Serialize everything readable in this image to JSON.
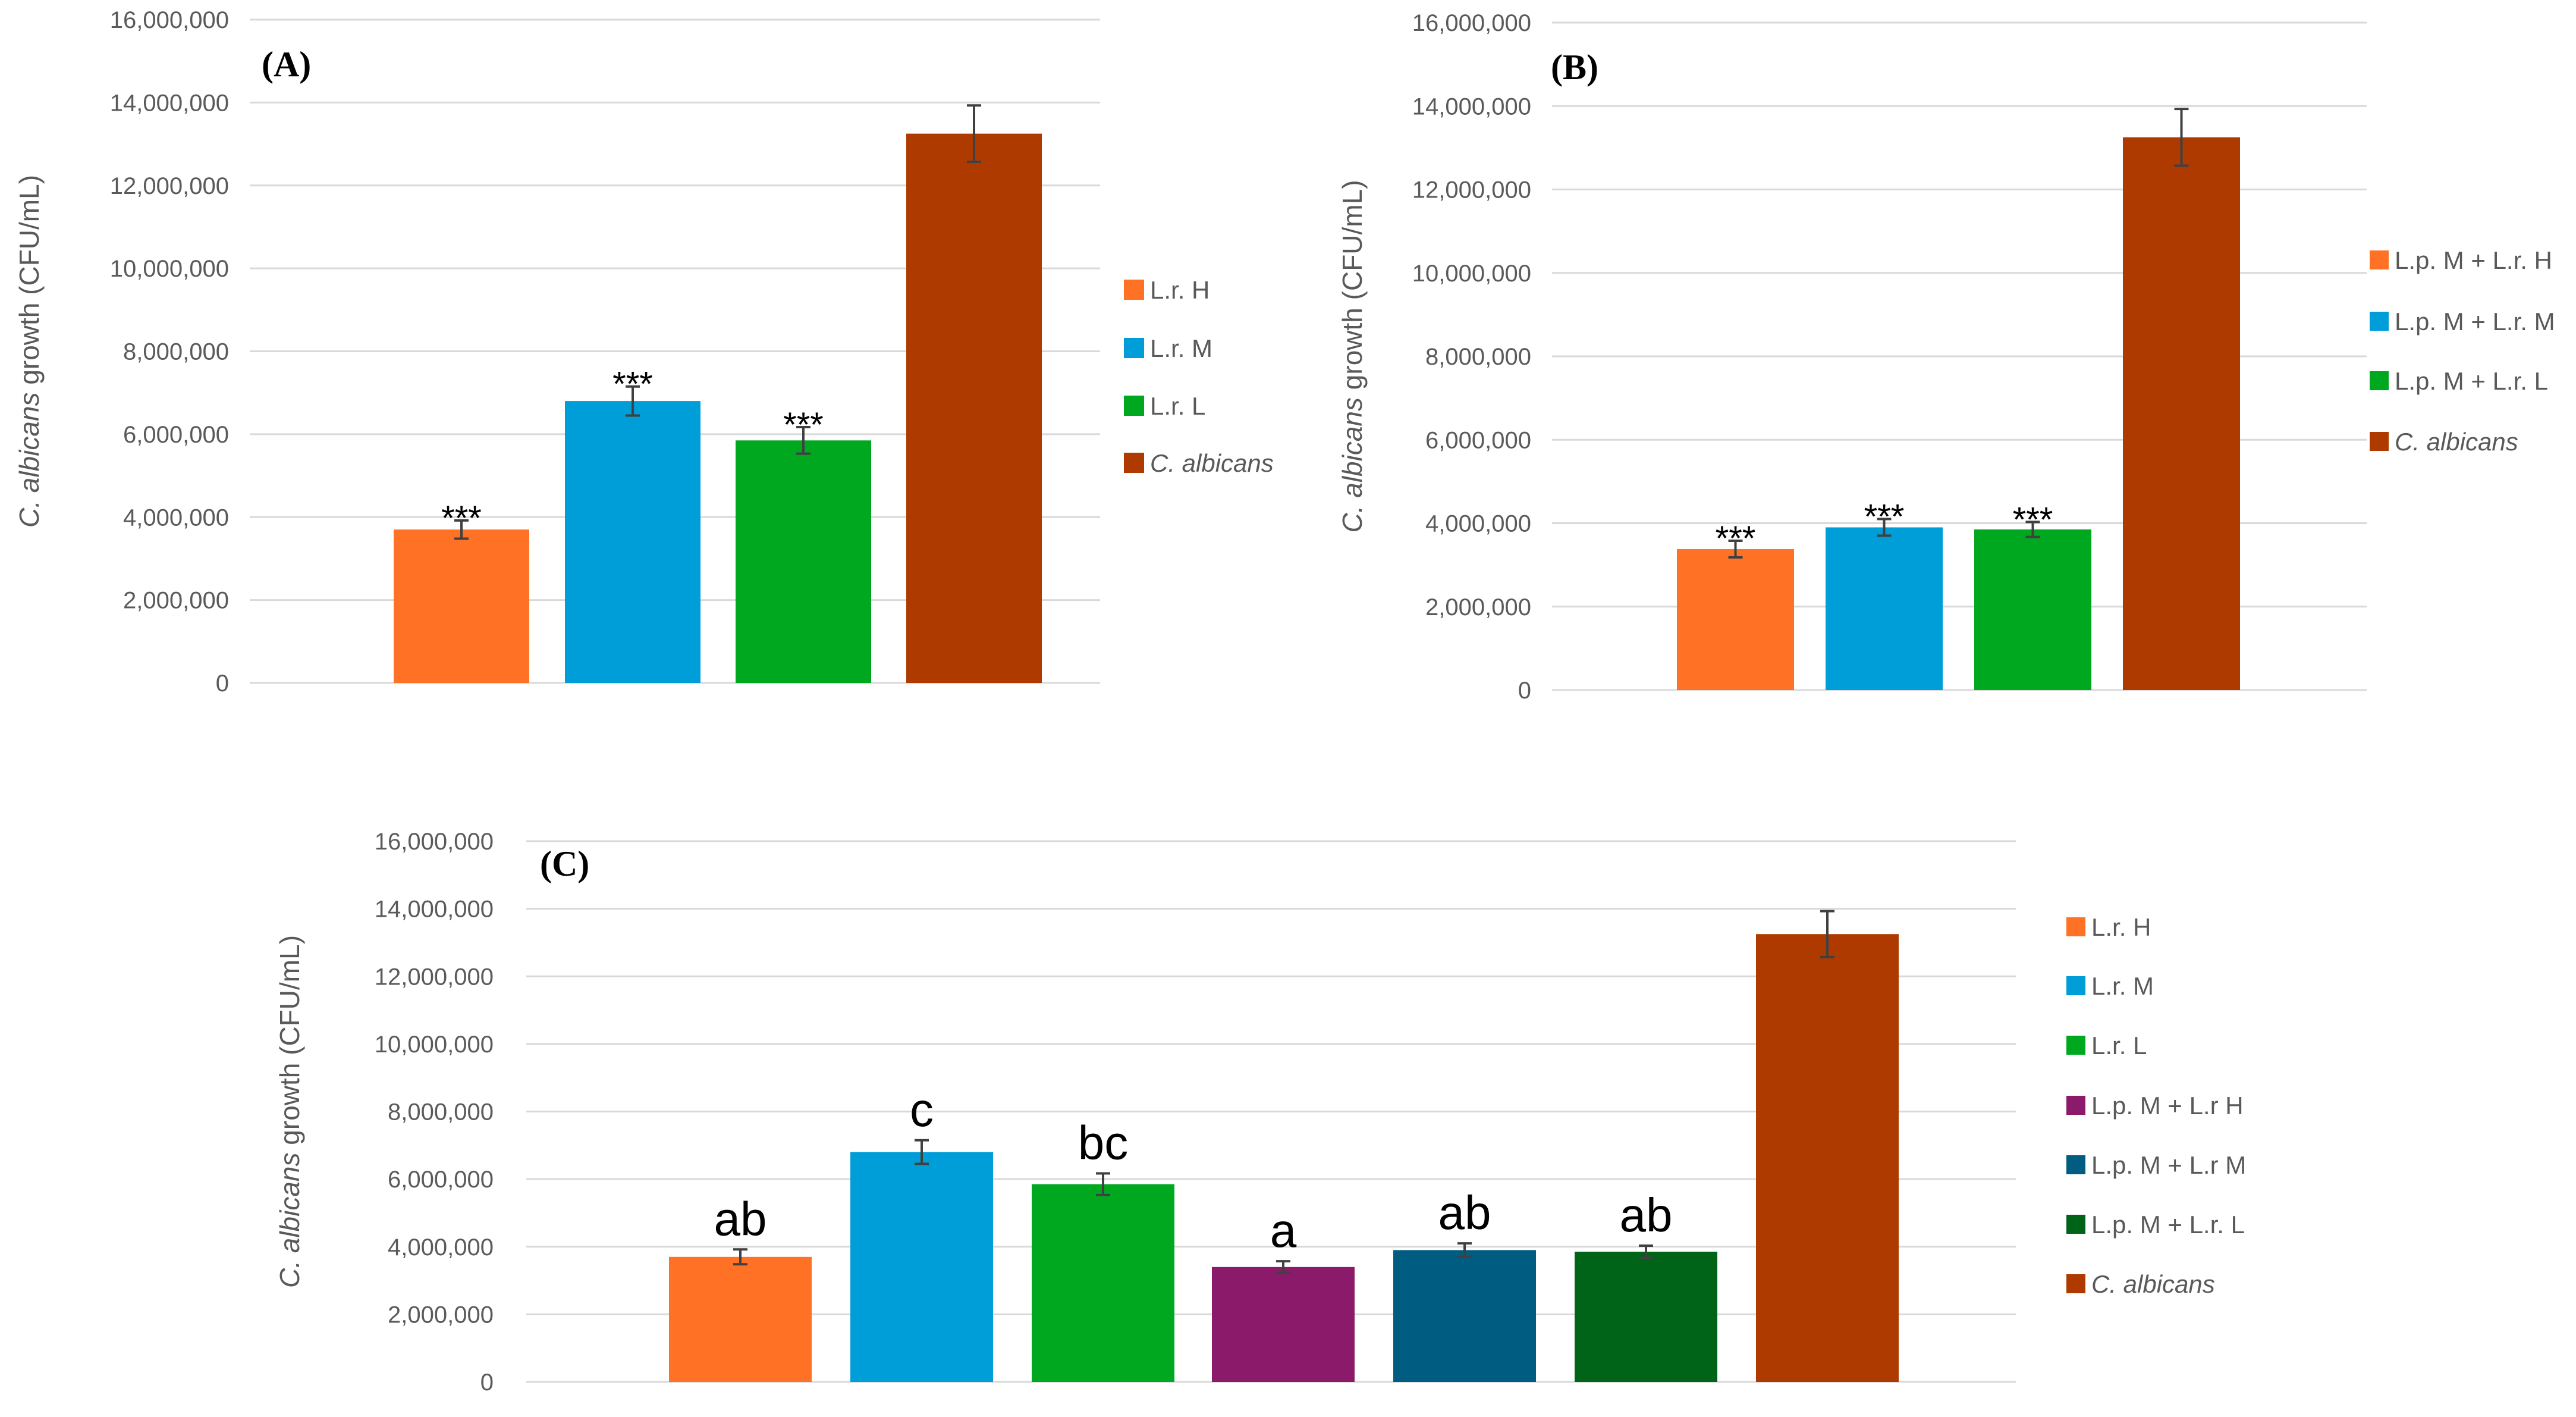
{
  "colors": {
    "orange": "#ff7124",
    "blue": "#009ed8",
    "green": "#00a81f",
    "purple": "#8b1a6b",
    "teal": "#005c80",
    "darkgreen": "#006418",
    "brown": "#ae3a00"
  },
  "chart_data": [
    {
      "type": "bar",
      "panel_label": "(A)",
      "ylabel_italic": "C. albicans",
      "ylabel_rest": " growth (CFU/mL)",
      "ylim": [
        0,
        16000000
      ],
      "yticks": [
        "0",
        "2,000,000",
        "4,000,000",
        "6,000,000",
        "8,000,000",
        "10,000,000",
        "12,000,000",
        "14,000,000",
        "16,000,000"
      ],
      "series": [
        {
          "name": "L.r. H",
          "italic": false,
          "value": 3700000,
          "error": 220000,
          "color": "orange",
          "annotation": "***"
        },
        {
          "name": "L.r. M",
          "italic": false,
          "value": 6800000,
          "error": 350000,
          "color": "blue",
          "annotation": "***"
        },
        {
          "name": "L.r. L",
          "italic": false,
          "value": 5850000,
          "error": 320000,
          "color": "green",
          "annotation": "***"
        },
        {
          "name": "C. albicans",
          "italic": true,
          "value": 13250000,
          "error": 680000,
          "color": "brown",
          "annotation": ""
        }
      ]
    },
    {
      "type": "bar",
      "panel_label": "(B)",
      "ylabel_italic": "C. albicans",
      "ylabel_rest": " growth (CFU/mL)",
      "ylim": [
        0,
        16000000
      ],
      "yticks": [
        "0",
        "2,000,000",
        "4,000,000",
        "6,000,000",
        "8,000,000",
        "10,000,000",
        "12,000,000",
        "14,000,000",
        "16,000,000"
      ],
      "series": [
        {
          "name": "L.p. M + L.r. H",
          "italic": false,
          "value": 3380000,
          "error": 200000,
          "color": "orange",
          "annotation": "***"
        },
        {
          "name": "L.p. M + L.r. M",
          "italic": false,
          "value": 3900000,
          "error": 200000,
          "color": "blue",
          "annotation": "***"
        },
        {
          "name": "L.p. M + L.r. L",
          "italic": false,
          "value": 3850000,
          "error": 180000,
          "color": "green",
          "annotation": "***"
        },
        {
          "name": "C. albicans",
          "italic": true,
          "value": 13250000,
          "error": 680000,
          "color": "brown",
          "annotation": ""
        }
      ]
    },
    {
      "type": "bar",
      "panel_label": "(C)",
      "ylabel_italic": "C. albicans",
      "ylabel_rest": " growth (CFU/mL)",
      "ylim": [
        0,
        16000000
      ],
      "yticks": [
        "0",
        "2,000,000",
        "4,000,000",
        "6,000,000",
        "8,000,000",
        "10,000,000",
        "12,000,000",
        "14,000,000",
        "16,000,000"
      ],
      "series": [
        {
          "name": "L.r. H",
          "italic": false,
          "value": 3700000,
          "error": 220000,
          "color": "orange",
          "annotation": "ab"
        },
        {
          "name": "L.r. M",
          "italic": false,
          "value": 6800000,
          "error": 350000,
          "color": "blue",
          "annotation": "c"
        },
        {
          "name": "L.r. L",
          "italic": false,
          "value": 5850000,
          "error": 320000,
          "color": "green",
          "annotation": "bc"
        },
        {
          "name": "L.p. M + L.r H",
          "italic": false,
          "value": 3400000,
          "error": 170000,
          "color": "purple",
          "annotation": "a"
        },
        {
          "name": "L.p. M + L.r M",
          "italic": false,
          "value": 3900000,
          "error": 200000,
          "color": "teal",
          "annotation": "ab"
        },
        {
          "name": "L.p. M + L.r. L",
          "italic": false,
          "value": 3850000,
          "error": 180000,
          "color": "darkgreen",
          "annotation": "ab"
        },
        {
          "name": "C. albicans",
          "italic": true,
          "value": 13250000,
          "error": 680000,
          "color": "brown",
          "annotation": ""
        }
      ]
    }
  ]
}
